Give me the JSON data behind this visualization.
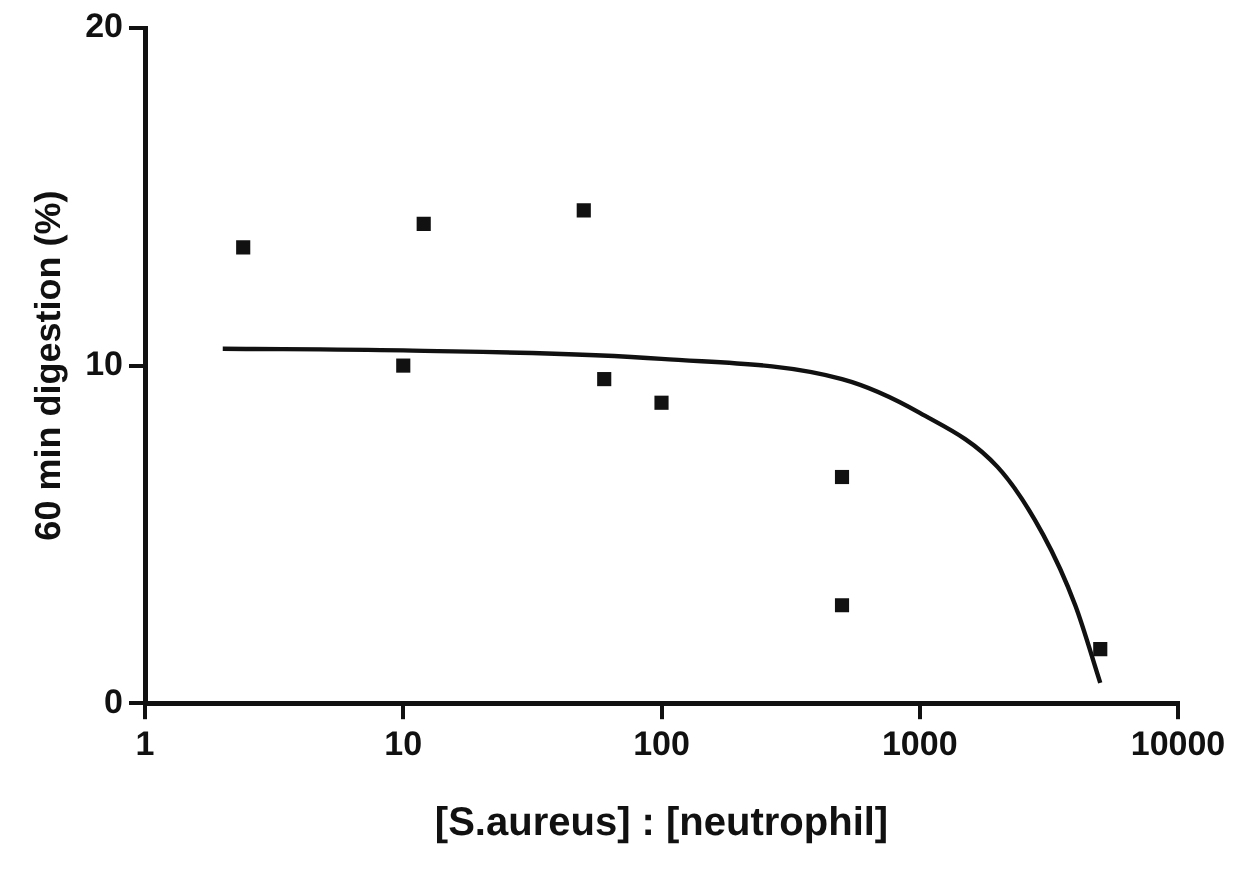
{
  "chart_data": {
    "type": "scatter",
    "xlabel": "[S.aureus] : [neutrophil]",
    "ylabel": "60 min digestion (%)",
    "log": "x",
    "xlim": [
      1,
      10000
    ],
    "xticks": [
      1,
      10,
      100,
      1000,
      10000
    ],
    "ylim": [
      0,
      20
    ],
    "yticks": [
      0,
      10,
      20
    ],
    "grid": false,
    "legend": false,
    "series": [
      {
        "marker": "square",
        "color": "#111111",
        "x": [
          2.4,
          10,
          12,
          50,
          60,
          100,
          500,
          500,
          5000
        ],
        "values": [
          13.5,
          10.0,
          14.2,
          14.6,
          9.6,
          8.9,
          6.7,
          2.9,
          1.6
        ]
      },
      {
        "type": "line",
        "marker": "none",
        "line_style": "solid",
        "color": "#111111",
        "x": [
          2,
          10,
          100,
          500,
          1000,
          2000,
          3000,
          4000,
          5000
        ],
        "values": [
          10.5,
          10.45,
          10.2,
          9.6,
          8.6,
          7.0,
          5.0,
          2.9,
          0.6
        ]
      }
    ]
  }
}
